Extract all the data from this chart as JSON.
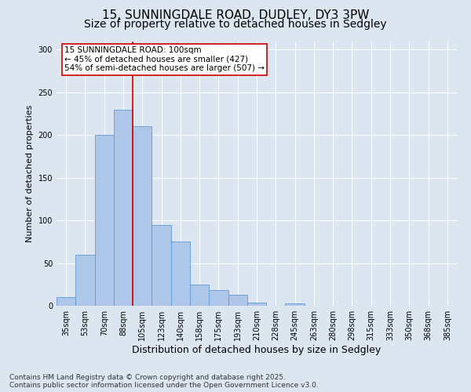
{
  "title": "15, SUNNINGDALE ROAD, DUDLEY, DY3 3PW",
  "subtitle": "Size of property relative to detached houses in Sedgley",
  "xlabel": "Distribution of detached houses by size in Sedgley",
  "ylabel": "Number of detached properties",
  "categories": [
    "35sqm",
    "53sqm",
    "70sqm",
    "88sqm",
    "105sqm",
    "123sqm",
    "140sqm",
    "158sqm",
    "175sqm",
    "193sqm",
    "210sqm",
    "228sqm",
    "245sqm",
    "263sqm",
    "280sqm",
    "298sqm",
    "315sqm",
    "333sqm",
    "350sqm",
    "368sqm",
    "385sqm"
  ],
  "values": [
    10,
    60,
    200,
    230,
    210,
    95,
    75,
    25,
    18,
    13,
    4,
    0,
    3,
    0,
    0,
    0,
    0,
    0,
    0,
    0,
    0
  ],
  "bar_color": "#aec6e8",
  "bar_edge_color": "#5b9bd5",
  "highlight_line_index": 4,
  "highlight_line_color": "#cc0000",
  "annotation_text_line1": "15 SUNNINGDALE ROAD: 100sqm",
  "annotation_text_line2": "← 45% of detached houses are smaller (427)",
  "annotation_text_line3": "54% of semi-detached houses are larger (507) →",
  "annotation_box_color": "#ffffff",
  "annotation_box_edge": "#cc0000",
  "background_color": "#dce6f0",
  "plot_background": "#dce6f0",
  "ylim": [
    0,
    310
  ],
  "yticks": [
    0,
    50,
    100,
    150,
    200,
    250,
    300
  ],
  "footnote": "Contains HM Land Registry data © Crown copyright and database right 2025.\nContains public sector information licensed under the Open Government Licence v3.0.",
  "title_fontsize": 11,
  "subtitle_fontsize": 10,
  "xlabel_fontsize": 9,
  "ylabel_fontsize": 8,
  "tick_fontsize": 7,
  "annotation_fontsize": 7.5,
  "footnote_fontsize": 6.5
}
